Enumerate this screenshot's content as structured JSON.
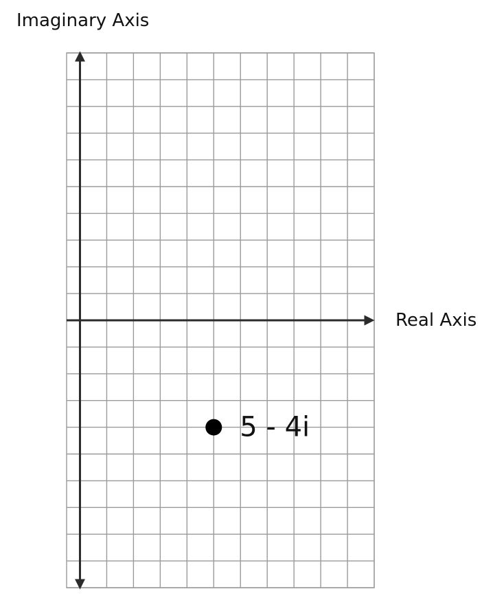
{
  "chart_data": {
    "type": "scatter",
    "title": "",
    "xlabel": "Real Axis",
    "ylabel": "Imaginary Axis",
    "xlim": [
      -0.5,
      11
    ],
    "ylim": [
      -10,
      10
    ],
    "grid": true,
    "tick_labels": false,
    "points": [
      {
        "x": 5,
        "y": -4,
        "label": "5 - 4i"
      }
    ]
  },
  "colors": {
    "grid": "#9a9a9a",
    "axis": "#2b2b2b",
    "point": "#000000"
  }
}
